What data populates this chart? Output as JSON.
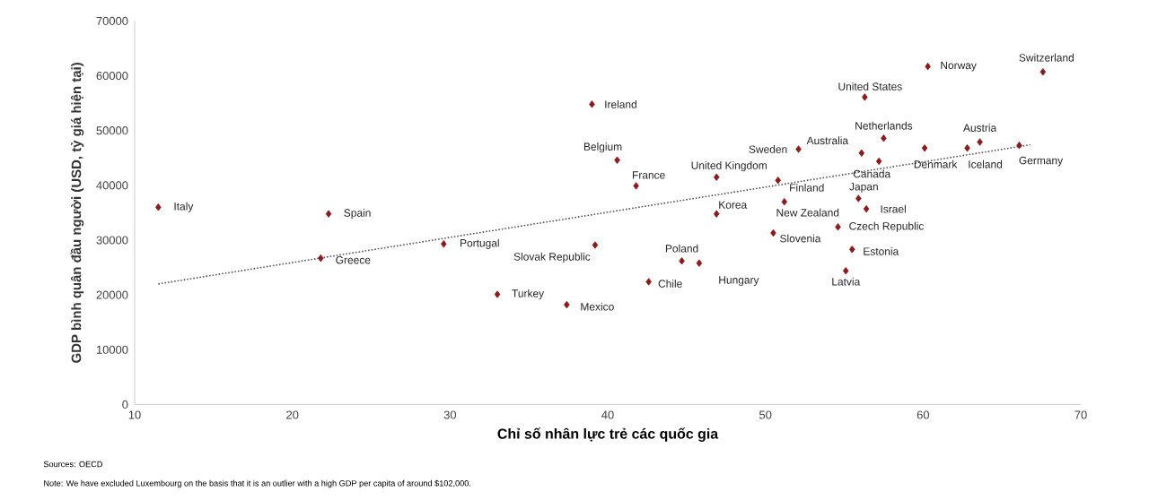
{
  "chart_data": {
    "type": "scatter",
    "xlabel": "Chỉ số nhân lực trẻ các quốc gia",
    "ylabel": "GDP bình quân đầu người (USD, tỷ giá hiện tại)",
    "xlim": [
      10,
      70
    ],
    "xticks": [
      10,
      20,
      30,
      40,
      50,
      60,
      70
    ],
    "ylim": [
      0,
      70000
    ],
    "yticks": [
      0,
      10000,
      20000,
      30000,
      40000,
      50000,
      60000,
      70000
    ],
    "series": [
      {
        "color": "#8b1a1a",
        "marker": "diamond",
        "x": [
          11.5,
          22.3,
          21.8,
          29.6,
          33.0,
          37.4,
          39.0,
          39.2,
          40.6,
          41.8,
          42.6,
          44.7,
          45.8,
          46.9,
          46.9,
          50.5,
          50.8,
          51.2,
          52.1,
          56.1,
          56.3,
          55.9,
          56.4,
          54.6,
          55.1,
          55.5,
          57.2,
          57.5,
          60.3,
          60.1,
          62.8,
          63.6,
          66.1,
          67.6
        ],
        "values": [
          36000,
          34800,
          26700,
          29300,
          20100,
          18200,
          54800,
          29100,
          44600,
          39900,
          22400,
          26200,
          25800,
          41500,
          34800,
          31300,
          40900,
          37000,
          46600,
          45900,
          56100,
          37600,
          35700,
          32400,
          24400,
          28300,
          44400,
          48600,
          61700,
          46800,
          46800,
          47900,
          47300,
          60700
        ]
      },
      {
        "type": "line",
        "color": "#555555",
        "marker": "none",
        "line_style": "dotted",
        "x": [
          11.5,
          66.8
        ],
        "values": [
          22000,
          47400
        ]
      }
    ],
    "annotations": [
      {
        "text": "Italy",
        "x": 11.5,
        "y": 36000
      },
      {
        "text": "Spain",
        "x": 22.3,
        "y": 34800
      },
      {
        "text": "Greece",
        "x": 21.8,
        "y": 26700
      },
      {
        "text": "Portugal",
        "x": 29.6,
        "y": 29300
      },
      {
        "text": "Turkey",
        "x": 33.0,
        "y": 20100
      },
      {
        "text": "Mexico",
        "x": 37.4,
        "y": 18200
      },
      {
        "text": "Ireland",
        "x": 39.0,
        "y": 54800
      },
      {
        "text": "Slovak Republic",
        "x": 39.2,
        "y": 29100
      },
      {
        "text": "Belgium",
        "x": 40.6,
        "y": 44600
      },
      {
        "text": "France",
        "x": 41.8,
        "y": 39900
      },
      {
        "text": "Chile",
        "x": 42.6,
        "y": 22400
      },
      {
        "text": "Poland",
        "x": 44.7,
        "y": 26200
      },
      {
        "text": "Hungary",
        "x": 45.8,
        "y": 25800
      },
      {
        "text": "United Kingdom",
        "x": 46.9,
        "y": 41500
      },
      {
        "text": "Korea",
        "x": 46.9,
        "y": 34800
      },
      {
        "text": "Slovenia",
        "x": 50.5,
        "y": 31300
      },
      {
        "text": "Finland",
        "x": 50.8,
        "y": 40900
      },
      {
        "text": "New Zealand",
        "x": 51.2,
        "y": 37000
      },
      {
        "text": "Sweden",
        "x": 52.1,
        "y": 46600
      },
      {
        "text": "Australia",
        "x": 56.1,
        "y": 45900
      },
      {
        "text": "United States",
        "x": 56.3,
        "y": 56100
      },
      {
        "text": "Japan",
        "x": 55.9,
        "y": 37600
      },
      {
        "text": "Israel",
        "x": 56.4,
        "y": 35700
      },
      {
        "text": "Czech Republic",
        "x": 54.6,
        "y": 32400
      },
      {
        "text": "Latvia",
        "x": 55.1,
        "y": 24400
      },
      {
        "text": "Estonia",
        "x": 55.5,
        "y": 28300
      },
      {
        "text": "Canada",
        "x": 57.2,
        "y": 44400
      },
      {
        "text": "Netherlands",
        "x": 57.5,
        "y": 48600
      },
      {
        "text": "Norway",
        "x": 60.3,
        "y": 61700
      },
      {
        "text": "Denmark",
        "x": 60.1,
        "y": 46800
      },
      {
        "text": "Iceland",
        "x": 62.8,
        "y": 46800
      },
      {
        "text": "Austria",
        "x": 63.6,
        "y": 47900
      },
      {
        "text": "Germany",
        "x": 66.1,
        "y": 47300
      },
      {
        "text": "Switzerland",
        "x": 67.6,
        "y": 60700
      },
      "Sources: OECD",
      "Note: We have excluded Luxembourg on the basis that it is an outlier with a high GDP per capita of around $102,000."
    ]
  }
}
